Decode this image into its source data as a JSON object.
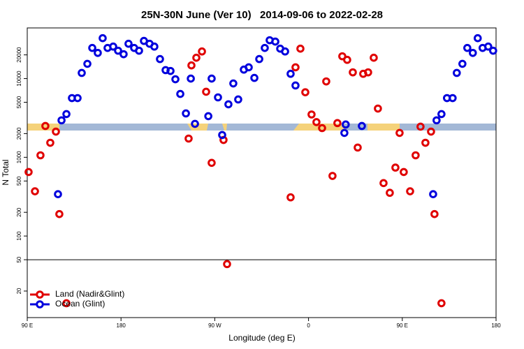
{
  "chart_data": {
    "type": "scatter",
    "title": "25N-30N June (Ver 10)   2014-09-06 to 2022-02-28",
    "x_label": "Longitude (deg E)",
    "y_label": "N Total",
    "log_y": true,
    "legend": "bottom-left",
    "reference_line": 50,
    "xlim": [
      90,
      540
    ],
    "xticks": [
      {
        "value": 90,
        "label": "90 E"
      },
      {
        "value": 180,
        "label": "180"
      },
      {
        "value": 270,
        "label": "90 W"
      },
      {
        "value": 360,
        "label": "0"
      },
      {
        "value": 450,
        "label": "90 E"
      },
      {
        "value": 540,
        "label": "180"
      }
    ],
    "ylim": [
      9.2,
      44000
    ],
    "yticks": [
      20,
      50,
      100,
      200,
      500,
      1000,
      2000,
      5000,
      10000,
      20000
    ],
    "series": [
      {
        "name": "Land (Nadir&Glint)",
        "color": "#e00000",
        "x": [
          91.3,
          97.4,
          102.7,
          107.4,
          112.1,
          117.5,
          120.8,
          127.6,
          244.9,
          247.6,
          252.3,
          257.7,
          261.7,
          267.0,
          278.4,
          281.8,
          342.8,
          347.5,
          352.2,
          356.9,
          362.9,
          367.6,
          373.0,
          377.0,
          383.0,
          387.7,
          392.4,
          397.1,
          402.5,
          407.2,
          412.5,
          417.2,
          422.6,
          426.6,
          432.0,
          438.0,
          443.4,
          447.4,
          451.4,
          457.5,
          462.8,
          467.5,
          472.2,
          477.6,
          480.9,
          487.6
        ],
        "values": [
          650,
          370,
          1060,
          2500,
          1530,
          2120,
          190,
          14,
          1730,
          14700,
          18400,
          22100,
          6800,
          850,
          1660,
          44,
          310,
          13900,
          24000,
          6700,
          3500,
          2800,
          2350,
          9200,
          580,
          2720,
          19200,
          17300,
          12000,
          1330,
          11500,
          12000,
          18400,
          4160,
          470,
          354,
          740,
          2040,
          650,
          370,
          1060,
          2450,
          1530,
          2120,
          190,
          14
        ]
      },
      {
        "name": "Ocean (Glint)",
        "color": "#0000dd",
        "x": [
          119.5,
          122.9,
          127.6,
          132.9,
          138.3,
          142.3,
          147.7,
          152.4,
          157.7,
          162.4,
          167.1,
          172.5,
          177.2,
          182.5,
          187.2,
          192.6,
          197.3,
          202.0,
          207.4,
          212.0,
          217.4,
          222.8,
          227.5,
          232.2,
          236.9,
          242.3,
          247.0,
          251.0,
          263.8,
          267.0,
          273.1,
          277.1,
          283.1,
          287.8,
          292.5,
          297.9,
          302.6,
          308.0,
          312.7,
          318.0,
          322.7,
          328.1,
          332.8,
          337.5,
          342.8,
          347.5,
          394.4,
          395.7,
          411.2,
          479.6,
          482.9,
          487.6,
          492.9,
          498.3,
          502.3,
          507.7,
          512.4,
          517.7,
          522.4,
          527.1,
          532.5,
          537.2
        ],
        "values": [
          340,
          2950,
          3540,
          5650,
          5650,
          11800,
          15400,
          24500,
          21200,
          32600,
          24500,
          25500,
          22600,
          20400,
          27700,
          24500,
          22600,
          30100,
          27700,
          25500,
          17700,
          12800,
          12500,
          9800,
          6380,
          3610,
          10000,
          2660,
          3330,
          10000,
          5770,
          1920,
          4710,
          8670,
          5430,
          13000,
          13900,
          10200,
          17700,
          24500,
          30700,
          29500,
          24000,
          22100,
          11500,
          8170,
          2040,
          2610,
          2500,
          340,
          2950,
          3540,
          5650,
          5650,
          11800,
          15400,
          24500,
          21200,
          32600,
          24500,
          25500,
          22600
        ]
      }
    ]
  }
}
